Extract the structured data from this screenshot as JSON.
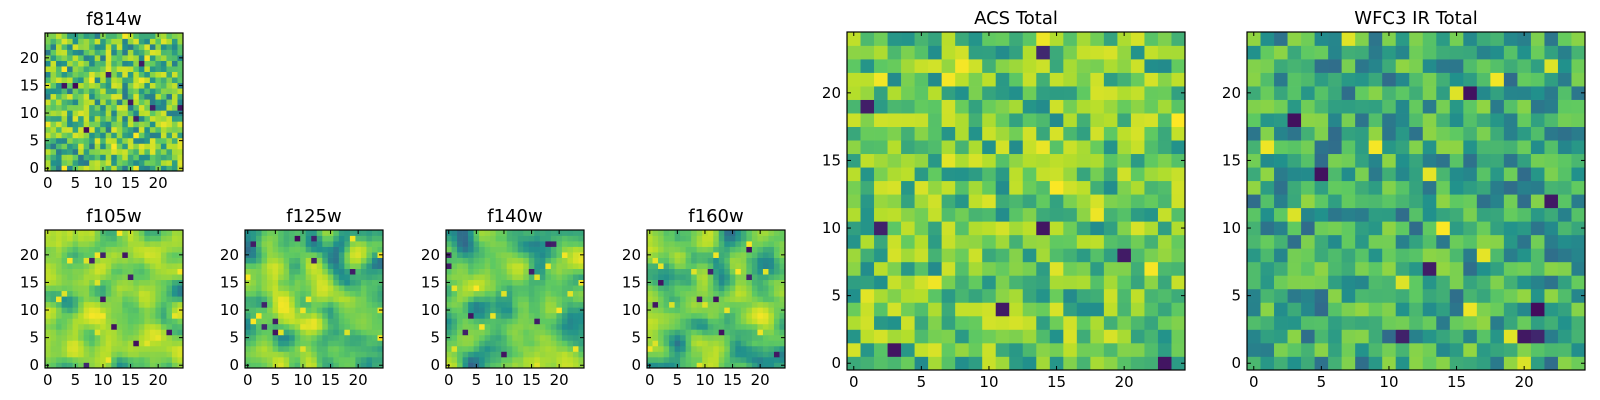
{
  "figure": {
    "description_colormap": "viridis"
  },
  "colormap": [
    "#440154",
    "#3b528b",
    "#21918c",
    "#5ec962",
    "#b5de2b",
    "#fde725"
  ],
  "chart_data": [
    {
      "type": "heatmap",
      "id": "f814w",
      "title": "f814w",
      "grid_size": 25,
      "x_ticks": [
        0,
        5,
        10,
        15,
        20
      ],
      "y_ticks": [
        0,
        5,
        10,
        15,
        20
      ],
      "xlim": [
        -0.5,
        24.5
      ],
      "ylim": [
        -0.5,
        24.5
      ],
      "seed": 11,
      "smooth": 0,
      "mean": 0.62,
      "spread": 0.3
    },
    {
      "type": "heatmap",
      "id": "f105w",
      "title": "f105w",
      "grid_size": 25,
      "x_ticks": [
        0,
        5,
        10,
        15,
        20
      ],
      "y_ticks": [
        0,
        5,
        10,
        15,
        20
      ],
      "xlim": [
        -0.5,
        24.5
      ],
      "ylim": [
        -0.5,
        24.5
      ],
      "seed": 23,
      "smooth": 2,
      "mean": 0.66,
      "spread": 0.32
    },
    {
      "type": "heatmap",
      "id": "f125w",
      "title": "f125w",
      "grid_size": 25,
      "x_ticks": [
        0,
        5,
        10,
        15,
        20
      ],
      "y_ticks": [
        0,
        5,
        10,
        15,
        20
      ],
      "xlim": [
        -0.5,
        24.5
      ],
      "ylim": [
        -0.5,
        24.5
      ],
      "seed": 37,
      "smooth": 2,
      "mean": 0.63,
      "spread": 0.34
    },
    {
      "type": "heatmap",
      "id": "f140w",
      "title": "f140w",
      "grid_size": 25,
      "x_ticks": [
        0,
        5,
        10,
        15,
        20
      ],
      "y_ticks": [
        0,
        5,
        10,
        15,
        20
      ],
      "xlim": [
        -0.5,
        24.5
      ],
      "ylim": [
        -0.5,
        24.5
      ],
      "seed": 41,
      "smooth": 2,
      "mean": 0.6,
      "spread": 0.34
    },
    {
      "type": "heatmap",
      "id": "f160w",
      "title": "f160w",
      "grid_size": 25,
      "x_ticks": [
        0,
        5,
        10,
        15,
        20
      ],
      "y_ticks": [
        0,
        5,
        10,
        15,
        20
      ],
      "xlim": [
        -0.5,
        24.5
      ],
      "ylim": [
        -0.5,
        24.5
      ],
      "seed": 53,
      "smooth": 2,
      "mean": 0.63,
      "spread": 0.34
    },
    {
      "type": "heatmap",
      "id": "acs-total",
      "title": "ACS Total",
      "grid_size": 25,
      "x_ticks": [
        0,
        5,
        10,
        15,
        20
      ],
      "y_ticks": [
        0,
        5,
        10,
        15,
        20
      ],
      "xlim": [
        -0.5,
        24.5
      ],
      "ylim": [
        -0.5,
        24.5
      ],
      "seed": 67,
      "smooth": 0,
      "mean": 0.64,
      "spread": 0.26
    },
    {
      "type": "heatmap",
      "id": "wfc3-ir-total",
      "title": "WFC3 IR Total",
      "grid_size": 25,
      "x_ticks": [
        0,
        5,
        10,
        15,
        20
      ],
      "y_ticks": [
        0,
        5,
        10,
        15,
        20
      ],
      "xlim": [
        -0.5,
        24.5
      ],
      "ylim": [
        -0.5,
        24.5
      ],
      "seed": 79,
      "smooth": 0,
      "mean": 0.5,
      "spread": 0.22
    }
  ]
}
